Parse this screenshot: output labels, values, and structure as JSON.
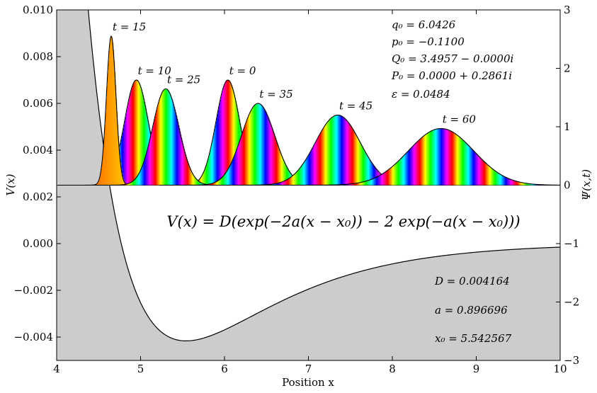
{
  "chart_data": {
    "type": "line",
    "xlabel": "Position x",
    "ylabel_left": "V(x)",
    "ylabel_right": "Ψ(x,t)",
    "xlim": [
      4,
      10
    ],
    "ylim_left": [
      -0.005,
      0.01
    ],
    "ylim_right": [
      -3,
      3
    ],
    "x_ticks": [
      "4",
      "5",
      "6",
      "7",
      "8",
      "9",
      "10"
    ],
    "y_left_ticks": [
      "−0.004",
      "−0.002",
      "0.000",
      "0.002",
      "0.004",
      "0.006",
      "0.008",
      "0.010"
    ],
    "y_right_ticks": [
      "−3",
      "−2",
      "−1",
      "0",
      "1",
      "2",
      "3"
    ],
    "potential": {
      "formula": "V(x) = D(exp(−2a(x − x₀)) − 2 exp(−a(x − x₀)))",
      "D": 0.004164,
      "a": 0.896696,
      "x0": 5.542567,
      "fill_color": "#cccccc"
    },
    "wave_packets": [
      {
        "label": "t = 0",
        "center": 6.04,
        "height": 1.8,
        "width": 0.2
      },
      {
        "label": "t = 10",
        "center": 4.95,
        "height": 1.8,
        "width": 0.2
      },
      {
        "label": "t = 15",
        "center": 4.65,
        "height": 2.55,
        "width": 0.08
      },
      {
        "label": "t = 25",
        "center": 5.3,
        "height": 1.65,
        "width": 0.22
      },
      {
        "label": "t = 35",
        "center": 6.4,
        "height": 1.4,
        "width": 0.28
      },
      {
        "label": "t = 45",
        "center": 7.35,
        "height": 1.2,
        "width": 0.38
      },
      {
        "label": "t = 60",
        "center": 8.58,
        "height": 0.97,
        "width": 0.55
      }
    ],
    "parameters": [
      {
        "name": "q0",
        "text": "q₀ = 6.0426"
      },
      {
        "name": "p0",
        "text": "p₀ = −0.1100"
      },
      {
        "name": "Q0",
        "text": "Q₀ = 3.4957 − 0.0000i"
      },
      {
        "name": "P0",
        "text": "P₀ = 0.0000 + 0.2861i"
      },
      {
        "name": "eps",
        "text": "ε = 0.0484"
      }
    ],
    "potential_params": [
      {
        "name": "D",
        "text": "D = 0.004164"
      },
      {
        "name": "a",
        "text": "a = 0.896696"
      },
      {
        "name": "x0",
        "text": "x₀ = 5.542567"
      }
    ],
    "legend": "none",
    "grid": false
  }
}
